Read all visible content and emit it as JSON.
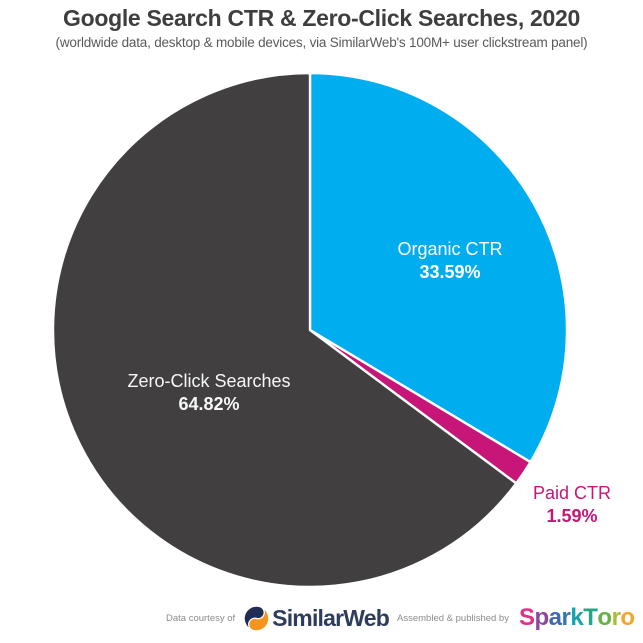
{
  "header": {
    "title": "Google Search CTR & Zero-Click Searches, 2020",
    "subtitle": "(worldwide data, desktop & mobile devices, via SimilarWeb's 100M+ user clickstream panel)"
  },
  "chart_data": {
    "type": "pie",
    "title": "Google Search CTR & Zero-Click Searches, 2020",
    "subtitle": "(worldwide data, desktop & mobile devices, via SimilarWeb's 100M+ user clickstream panel)",
    "start_angle_deg": 0,
    "direction": "clockwise",
    "separator_color": "#ffffff",
    "slices": [
      {
        "label": "Organic CTR",
        "value": 33.59,
        "display": "33.59%",
        "color": "#00aeef",
        "label_color": "#ffffff",
        "label_position": "inside"
      },
      {
        "label": "Paid CTR",
        "value": 1.59,
        "display": "1.59%",
        "color": "#c81578",
        "label_color": "#c81578",
        "label_position": "outside"
      },
      {
        "label": "Zero-Click Searches",
        "value": 64.82,
        "display": "64.82%",
        "color": "#413f40",
        "label_color": "#f7f7f7",
        "label_position": "inside"
      }
    ]
  },
  "footer": {
    "left_caption": "Data courtesy of",
    "similarweb_text": "SimilarWeb",
    "similarweb_navy": "#2f3d5c",
    "similarweb_icon_navy": "#202c52",
    "similarweb_icon_orange": "#f7941d",
    "right_caption": "Assembled & published by",
    "sparktoro_letters": [
      {
        "char": "S",
        "color": "#e13087"
      },
      {
        "char": "p",
        "color": "#8e459b"
      },
      {
        "char": "a",
        "color": "#4169b2"
      },
      {
        "char": "r",
        "color": "#3476b5"
      },
      {
        "char": "k",
        "color": "#17a3ad"
      },
      {
        "char": "T",
        "color": "#23a787"
      },
      {
        "char": "o",
        "color": "#67b043"
      },
      {
        "char": "r",
        "color": "#adba36"
      },
      {
        "char": "o",
        "color": "#f3a52f"
      }
    ]
  }
}
